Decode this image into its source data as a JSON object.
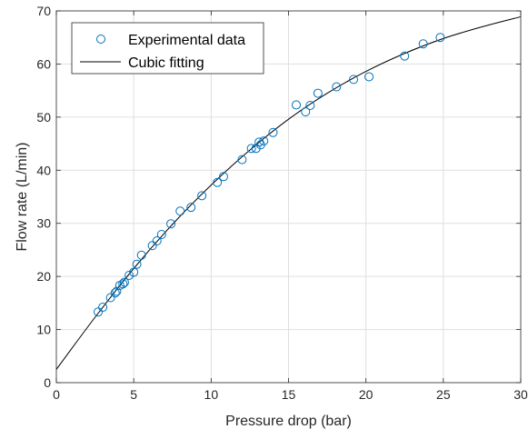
{
  "chart_data": {
    "type": "scatter",
    "title": "",
    "xlabel": "Pressure drop (bar)",
    "ylabel": "Flow rate (L/min)",
    "xlim": [
      0,
      30
    ],
    "ylim": [
      0,
      70
    ],
    "xticks": [
      0,
      5,
      10,
      15,
      20,
      25,
      30
    ],
    "yticks": [
      0,
      10,
      20,
      30,
      40,
      50,
      60,
      70
    ],
    "grid": true,
    "legend_position": "top-left",
    "series": [
      {
        "name": "Experimental data",
        "kind": "scatter",
        "marker": "open-circle",
        "color": "#0072BD",
        "x": [
          2.7,
          3.0,
          3.5,
          3.8,
          3.9,
          4.1,
          4.3,
          4.4,
          4.7,
          5.0,
          5.2,
          5.5,
          6.2,
          6.5,
          6.8,
          7.4,
          8.0,
          8.7,
          9.4,
          10.4,
          10.8,
          12.0,
          12.6,
          12.9,
          13.1,
          13.2,
          13.4,
          14.0,
          15.5,
          16.1,
          16.4,
          16.9,
          18.1,
          19.2,
          20.2,
          22.5,
          23.7,
          24.8
        ],
        "y": [
          13.3,
          14.2,
          16.0,
          16.9,
          17.2,
          18.3,
          18.6,
          18.9,
          20.2,
          20.8,
          22.3,
          24.0,
          25.8,
          26.7,
          27.9,
          29.9,
          32.3,
          33.0,
          35.2,
          37.7,
          38.8,
          42.0,
          44.1,
          44.1,
          45.3,
          44.8,
          45.5,
          47.1,
          52.3,
          51.0,
          52.2,
          54.5,
          55.7,
          57.1,
          57.6,
          61.5,
          63.8,
          65.0
        ]
      },
      {
        "name": "Cubic fitting",
        "kind": "line",
        "color": "#000000",
        "x": [
          0,
          2.5,
          5,
          7.5,
          10,
          12.5,
          15,
          17.5,
          20,
          22.5,
          25,
          27.5,
          30
        ],
        "y": [
          2.5,
          12.3,
          21.5,
          29.8,
          37.2,
          43.8,
          49.6,
          54.5,
          58.6,
          62.0,
          64.8,
          67.0,
          68.9
        ]
      }
    ]
  }
}
